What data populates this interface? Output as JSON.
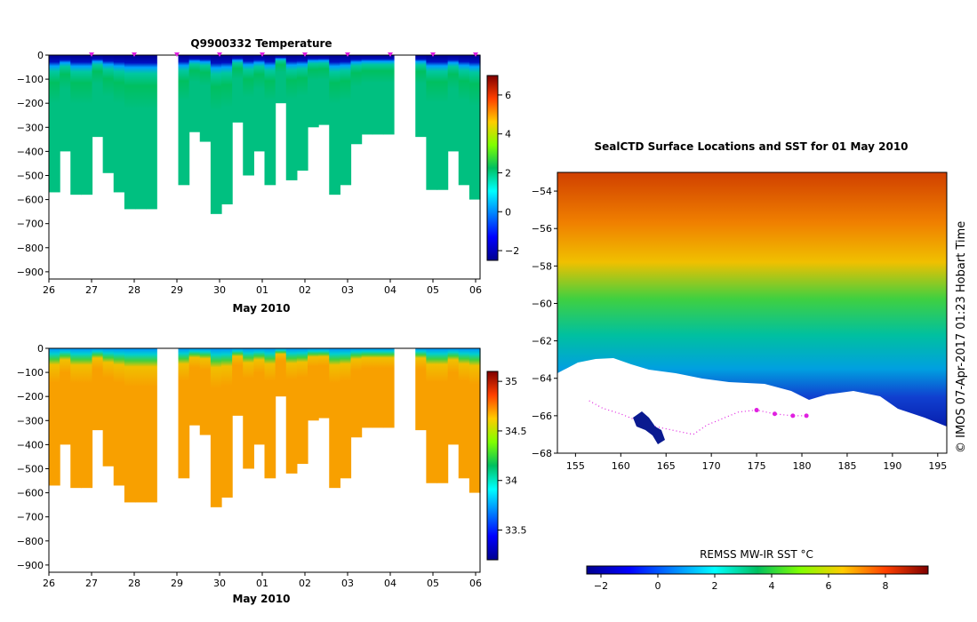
{
  "chart_data": [
    {
      "type": "heatmap",
      "title": "Q9900332  Temperature",
      "xlabel": "May 2010",
      "ylabel": "",
      "x_ticks": [
        "26",
        "27",
        "28",
        "29",
        "30",
        "01",
        "02",
        "03",
        "04",
        "05",
        "06"
      ],
      "y_ticks": [
        0,
        -100,
        -200,
        -300,
        -400,
        -500,
        -600,
        -700,
        -800,
        -900
      ],
      "ylim": [
        -930,
        0
      ],
      "colorbar": {
        "min": -2.5,
        "max": 7,
        "ticks": [
          -2,
          0,
          2,
          4,
          6
        ]
      },
      "profile_depths": [
        570,
        400,
        580,
        580,
        340,
        490,
        570,
        640,
        640,
        640,
        0,
        0,
        540,
        320,
        360,
        660,
        620,
        280,
        500,
        400,
        540,
        200,
        520,
        480,
        300,
        290,
        580,
        540,
        370,
        330,
        330,
        330,
        0,
        0,
        340,
        560,
        560,
        400,
        540,
        600
      ],
      "surface_layer_value": -1.7,
      "thermocline_value": 1.0,
      "deep_value": 2.5
    },
    {
      "type": "heatmap",
      "title": "",
      "xlabel": "May 2010",
      "ylabel": "",
      "x_ticks": [
        "26",
        "27",
        "28",
        "29",
        "30",
        "01",
        "02",
        "03",
        "04",
        "05",
        "06"
      ],
      "y_ticks": [
        0,
        -100,
        -200,
        -300,
        -400,
        -500,
        -600,
        -700,
        -800,
        -900
      ],
      "ylim": [
        -930,
        0
      ],
      "colorbar": {
        "min": 33.2,
        "max": 35.1,
        "ticks": [
          33.5,
          34,
          34.5,
          35
        ]
      },
      "profile_depths": [
        570,
        400,
        580,
        580,
        340,
        490,
        570,
        640,
        640,
        640,
        0,
        0,
        540,
        320,
        360,
        660,
        620,
        280,
        500,
        400,
        540,
        200,
        520,
        480,
        300,
        290,
        580,
        540,
        370,
        330,
        330,
        330,
        0,
        0,
        340,
        560,
        560,
        400,
        540,
        600
      ],
      "surface_value": 33.6,
      "deep_value": 34.7
    },
    {
      "type": "heatmap",
      "title": "SealCTD Surface Locations and SST for 01 May 2010",
      "xlabel": "",
      "ylabel": "",
      "x_ticks": [
        "155",
        "160",
        "165",
        "170",
        "175",
        "180",
        "185",
        "190",
        "195"
      ],
      "y_ticks": [
        "-54",
        "-56",
        "-58",
        "-60",
        "-62",
        "-64",
        "-66",
        "-68"
      ],
      "xlim": [
        153,
        196
      ],
      "ylim": [
        -68,
        -53
      ],
      "colorbar": {
        "label": "REMSS MW-IR SST °C",
        "min": -2.5,
        "max": 9.5,
        "ticks": [
          "-2",
          "0",
          "2",
          "4",
          "6",
          "8"
        ]
      },
      "credit": "© IMOS 07-Apr-2017 01:23 Hobart Time",
      "track_lon": [
        156.5,
        158,
        160,
        162,
        164,
        166,
        168,
        169.5,
        171,
        173,
        175,
        177,
        179,
        180.5
      ],
      "track_lat": [
        -65.2,
        -65.6,
        -65.9,
        -66.3,
        -66.6,
        -66.8,
        -67,
        -66.5,
        -66.2,
        -65.8,
        -65.7,
        -65.9,
        -66,
        -66
      ]
    }
  ],
  "colors": {
    "track": "#e020e0",
    "frame": "#000000"
  }
}
